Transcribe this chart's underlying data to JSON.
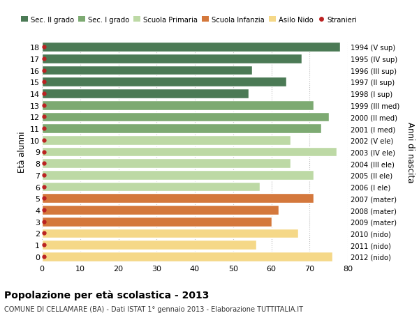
{
  "ages": [
    18,
    17,
    16,
    15,
    14,
    13,
    12,
    11,
    10,
    9,
    8,
    7,
    6,
    5,
    4,
    3,
    2,
    1,
    0
  ],
  "values": [
    78,
    68,
    55,
    64,
    54,
    71,
    75,
    73,
    65,
    77,
    65,
    71,
    57,
    71,
    62,
    60,
    67,
    56,
    76
  ],
  "right_labels": [
    "1994 (V sup)",
    "1995 (IV sup)",
    "1996 (III sup)",
    "1997 (II sup)",
    "1998 (I sup)",
    "1999 (III med)",
    "2000 (II med)",
    "2001 (I med)",
    "2002 (V ele)",
    "2003 (IV ele)",
    "2004 (III ele)",
    "2005 (II ele)",
    "2006 (I ele)",
    "2007 (mater)",
    "2008 (mater)",
    "2009 (mater)",
    "2010 (nido)",
    "2011 (nido)",
    "2012 (nido)"
  ],
  "bar_colors": [
    "#4b7a55",
    "#4b7a55",
    "#4b7a55",
    "#4b7a55",
    "#4b7a55",
    "#7daa72",
    "#7daa72",
    "#7daa72",
    "#bdd9a5",
    "#bdd9a5",
    "#bdd9a5",
    "#bdd9a5",
    "#bdd9a5",
    "#d4783c",
    "#d4783c",
    "#d4783c",
    "#f5d888",
    "#f5d888",
    "#f5d888"
  ],
  "dot_color": "#bb2222",
  "legend_labels": [
    "Sec. II grado",
    "Sec. I grado",
    "Scuola Primaria",
    "Scuola Infanzia",
    "Asilo Nido",
    "Stranieri"
  ],
  "legend_colors": [
    "#4b7a55",
    "#7daa72",
    "#bdd9a5",
    "#d4783c",
    "#f5d888",
    "#bb2222"
  ],
  "ylabel_left": "Età alunni",
  "ylabel_right": "Anni di nascita",
  "title": "Popolazione per età scolastica - 2013",
  "subtitle": "COMUNE DI CELLAMARE (BA) - Dati ISTAT 1° gennaio 2013 - Elaborazione TUTTITALIA.IT",
  "xlim": [
    0,
    80
  ],
  "xticks": [
    0,
    10,
    20,
    30,
    40,
    50,
    60,
    70,
    80
  ],
  "bg_color": "#ffffff",
  "bar_edge_color": "#ffffff",
  "grid_color": "#bbbbbb"
}
